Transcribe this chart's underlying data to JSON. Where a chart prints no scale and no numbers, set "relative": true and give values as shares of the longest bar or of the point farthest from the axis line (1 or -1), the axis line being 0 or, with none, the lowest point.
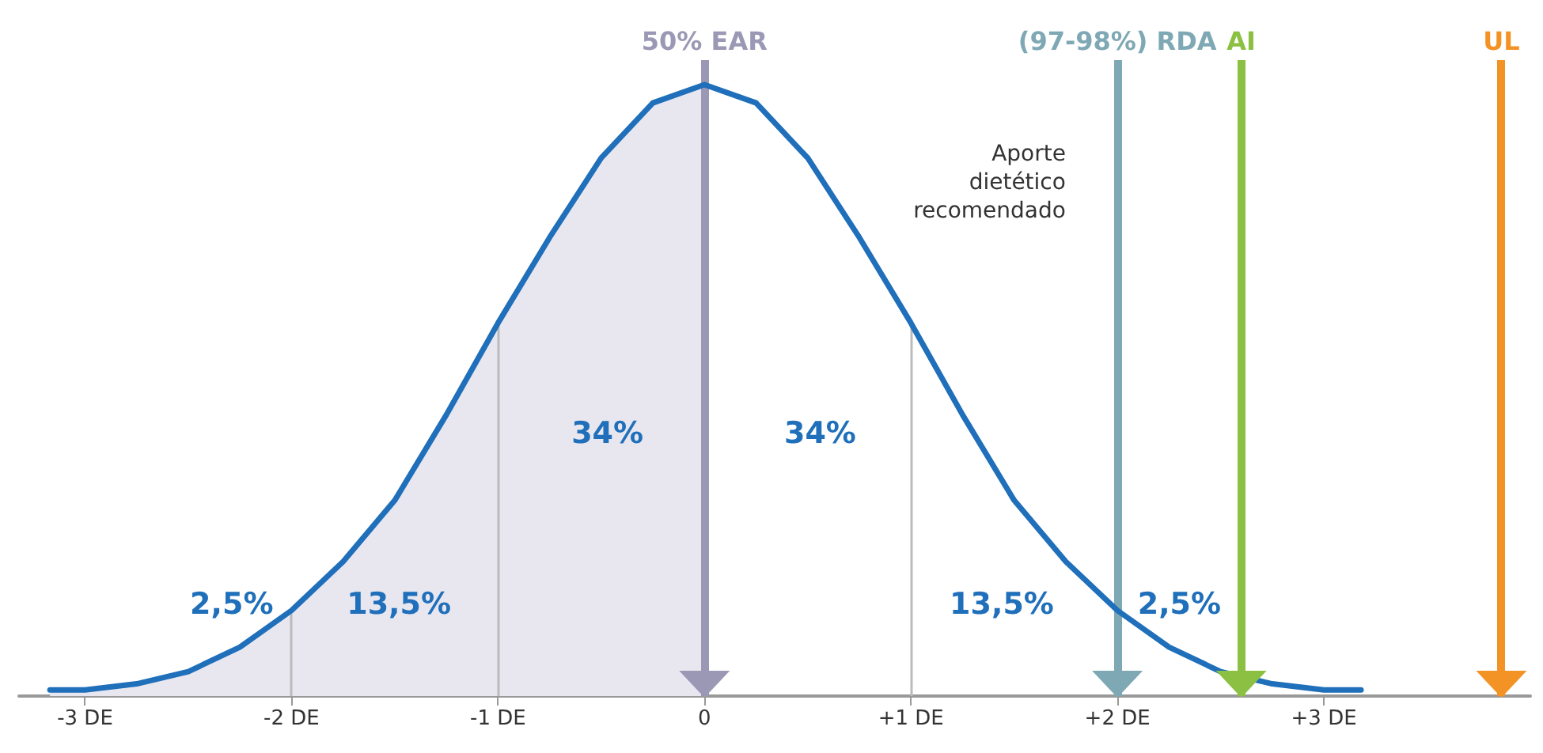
{
  "chart_data": {
    "type": "line",
    "relative": true,
    "grid": false,
    "marker": "none",
    "line_style": "solid",
    "tick_labels": "x",
    "xlim": [
      -3.32,
      4.0
    ],
    "xticks": [
      {
        "value": -3,
        "label": "-3 DE"
      },
      {
        "value": -2,
        "label": "-2 DE"
      },
      {
        "value": -1,
        "label": "-1 DE"
      },
      0,
      {
        "value": 1,
        "label": "+1 DE"
      },
      {
        "value": 2,
        "label": "+2 DE"
      },
      {
        "value": 3,
        "label": "+3 DE"
      }
    ],
    "series": [
      {
        "type": "area",
        "color": "#e8e7f0",
        "x": [
          -3.17,
          -3,
          -2.75,
          -2.5,
          -2.25,
          -2,
          -1.75,
          -1.5,
          -1.25,
          -1,
          -0.75,
          -0.5,
          -0.25,
          0
        ],
        "values": [
          0.01,
          0.01,
          0.02,
          0.04,
          0.08,
          0.14,
          0.22,
          0.32,
          0.46,
          0.61,
          0.75,
          0.88,
          0.97,
          1
        ]
      },
      {
        "type": "line",
        "color": "#1f6fba",
        "x": [
          -3.17,
          -3,
          -2.75,
          -2.5,
          -2.25,
          -2,
          -1.75,
          -1.5,
          -1.25,
          -1,
          -0.75,
          -0.5,
          -0.25,
          0,
          0.25,
          0.5,
          0.75,
          1,
          1.25,
          1.5,
          1.75,
          2,
          2.25,
          2.5,
          2.75,
          3,
          3.18
        ],
        "values": [
          0.01,
          0.01,
          0.02,
          0.04,
          0.08,
          0.14,
          0.22,
          0.32,
          0.46,
          0.61,
          0.75,
          0.88,
          0.97,
          1,
          0.97,
          0.88,
          0.75,
          0.61,
          0.46,
          0.32,
          0.22,
          0.14,
          0.08,
          0.04,
          0.02,
          0.01,
          0.01
        ]
      }
    ],
    "ref_lines": [
      {
        "axis": "x",
        "value": -2,
        "color": "#bbbbbb"
      },
      {
        "axis": "x",
        "value": -1,
        "color": "#bbbbbb"
      },
      {
        "axis": "x",
        "value": 1,
        "color": "#bbbbbb"
      },
      {
        "axis": "x",
        "value": 0,
        "label": "50% EAR",
        "color": "#9b98b5"
      },
      {
        "axis": "x",
        "value": 2,
        "label": "(97-98%) RDA",
        "color": "#7fa8b5"
      },
      {
        "axis": "x",
        "value": 2.6,
        "label": "AI",
        "color": "#8cc043"
      },
      {
        "axis": "x",
        "value": 3.86,
        "label": "UL",
        "color": "#f39325"
      }
    ],
    "annotations": [
      "2,5%",
      "13,5%",
      "34%",
      "34%",
      "13,5%",
      "2,5%",
      "Aporte\ndietético\nrecomendado"
    ]
  }
}
